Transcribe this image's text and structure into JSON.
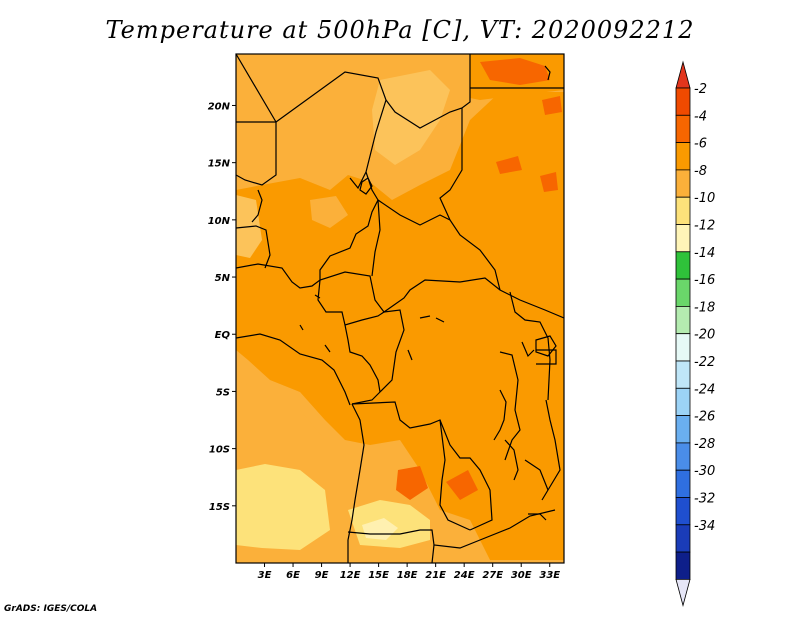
{
  "title": "Temperature at 500hPa [C], VT: 2020092212",
  "credit": "GrADS: IGES/COLA",
  "map": {
    "lon_range": [
      0,
      34.5
    ],
    "lat_range": [
      -20,
      24.5
    ],
    "lon_ticks": [
      "3E",
      "6E",
      "9E",
      "12E",
      "15E",
      "18E",
      "21E",
      "24E",
      "27E",
      "30E",
      "33E"
    ],
    "lat_ticks": [
      "20N",
      "15N",
      "10N",
      "5N",
      "EQ",
      "5S",
      "10S",
      "15S"
    ],
    "variable": "Temperature",
    "level": "500hPa",
    "units": "C"
  },
  "colorbar": {
    "labels": [
      "-2",
      "-4",
      "-6",
      "-8",
      "-10",
      "-12",
      "-14",
      "-16",
      "-18",
      "-20",
      "-22",
      "-24",
      "-26",
      "-28",
      "-30",
      "-32",
      "-34"
    ],
    "colors": [
      "#f04a00",
      "#f76600",
      "#fa9a00",
      "#fbb03a",
      "#fde27a",
      "#fff5b8",
      "#2fc23a",
      "#6ad66a",
      "#b4ecb0",
      "#e6f9f6",
      "#bfe6f8",
      "#9cd3f6",
      "#6aaff0",
      "#4a8de8",
      "#2f6fe0",
      "#1f4fcf",
      "#1a3cb8",
      "#0e1f8a"
    ],
    "top_tip": "#e2351d",
    "bottom_tip": "#e6e6f7"
  }
}
